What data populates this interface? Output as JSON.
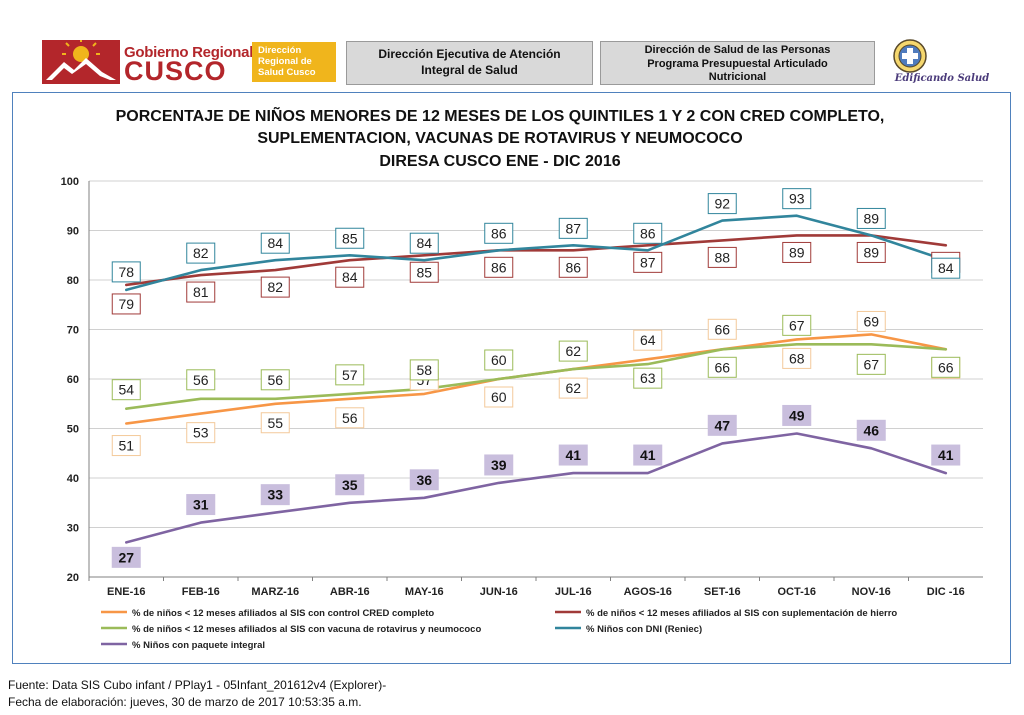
{
  "header": {
    "logo": {
      "gobierno": "Gobierno Regional",
      "cusco": "CUSCO",
      "direccion_lines": [
        "Dirección",
        "Regional de",
        "Salud Cusco"
      ]
    },
    "box1_lines": [
      "Dirección Ejecutiva de Atención",
      "Integral de Salud"
    ],
    "box2_lines": [
      "Dirección de Salud de las Personas",
      "Programa Presupuestal Articulado",
      "Nutricional"
    ],
    "emblem_text": "Edificando Salud"
  },
  "footer": {
    "source": "Fuente: Data SIS Cubo infant / PPlay1 - 05Infant_201612v4 (Explorer)-",
    "date": "Fecha de elaboración: jueves, 30 de marzo de 2017 10:53:35 a.m."
  },
  "colors": {
    "cred": "#f79646",
    "hierro": "#a03a38",
    "rotavirus": "#9bbb59",
    "dni": "#31859c",
    "paquete": "#7f64a2",
    "brand_red": "#b3262b",
    "brand_yellow": "#f0b51c"
  },
  "chart_data": {
    "type": "line",
    "title_lines": [
      "PORCENTAJE DE NIÑOS MENORES DE 12 MESES DE LOS QUINTILES 1 Y 2 CON CRED COMPLETO,",
      "SUPLEMENTACION, VACUNAS DE ROTAVIRUS Y NEUMOCOCO",
      "DIRESA CUSCO ENE - DIC 2016"
    ],
    "categories": [
      "ENE-16",
      "FEB-16",
      "MARZ-16",
      "ABR-16",
      "MAY-16",
      "JUN-16",
      "JUL-16",
      "AGOS-16",
      "SET-16",
      "OCT-16",
      "NOV-16",
      "DIC -16"
    ],
    "ylim": [
      20,
      100
    ],
    "yticks": [
      20,
      30,
      40,
      50,
      60,
      70,
      80,
      90,
      100
    ],
    "grid": true,
    "legend_position": "bottom",
    "series": [
      {
        "key": "cred",
        "name": "% de niños < 12 meses afiliados al SIS con control CRED completo",
        "values": [
          51,
          53,
          55,
          56,
          57,
          60,
          62,
          64,
          66,
          68,
          69,
          66
        ]
      },
      {
        "key": "hierro",
        "name": "% de niños < 12 meses afiliados al SIS con suplementación de hierro",
        "values": [
          79,
          81,
          82,
          84,
          85,
          86,
          86,
          87,
          88,
          89,
          89,
          87
        ]
      },
      {
        "key": "rotavirus",
        "name": "% de niños < 12 meses afiliados al SIS con  vacuna de rotavirus y neumococo",
        "values": [
          54,
          56,
          56,
          57,
          58,
          60,
          62,
          63,
          66,
          67,
          67,
          66
        ]
      },
      {
        "key": "dni",
        "name": "% Niños con DNI (Reniec)",
        "values": [
          78,
          82,
          84,
          85,
          84,
          86,
          87,
          86,
          92,
          93,
          89,
          84
        ]
      },
      {
        "key": "paquete",
        "name": "% Niños con paquete integral",
        "values": [
          27,
          31,
          33,
          35,
          36,
          39,
          41,
          41,
          47,
          49,
          46,
          41
        ]
      }
    ]
  }
}
